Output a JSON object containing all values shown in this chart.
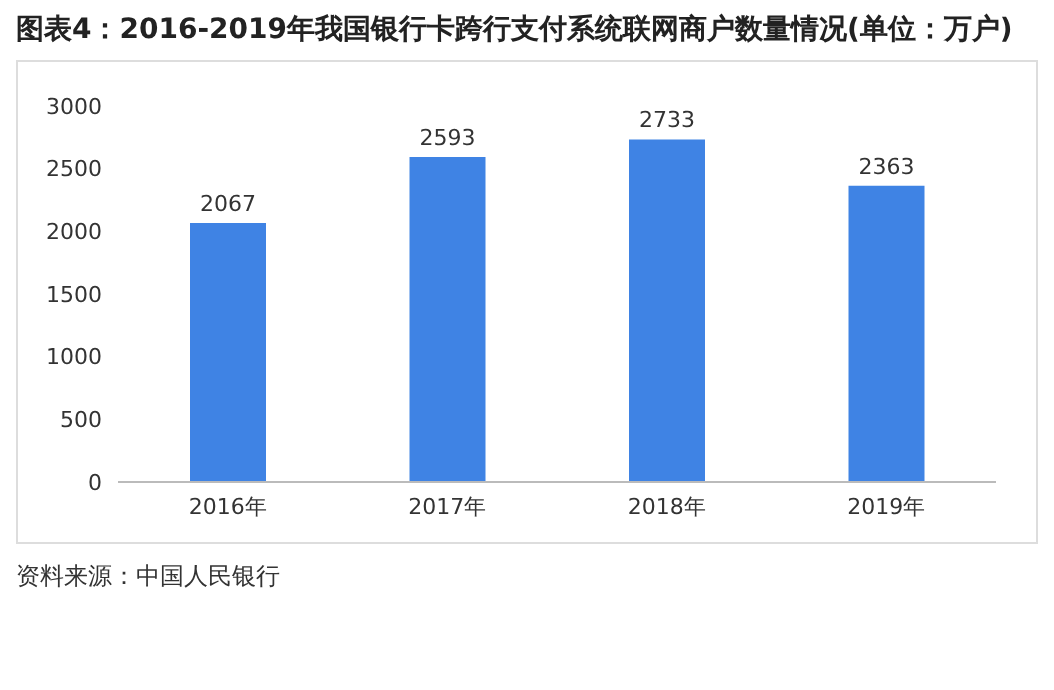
{
  "chart_data": {
    "type": "bar",
    "title": "图表4：2016-2019年我国银行卡跨行支付系统联网商户数量情况(单位：万户)",
    "categories": [
      "2016年",
      "2017年",
      "2018年",
      "2019年"
    ],
    "values": [
      2067,
      2593,
      2733,
      2363
    ],
    "color": "#3f83e4",
    "ylim": [
      0,
      3000
    ],
    "yticks": [
      0,
      500,
      1000,
      1500,
      2000,
      2500,
      3000
    ],
    "grid": false,
    "data_labels": true,
    "annotations": [
      "资料来源：中国人民银行"
    ]
  }
}
